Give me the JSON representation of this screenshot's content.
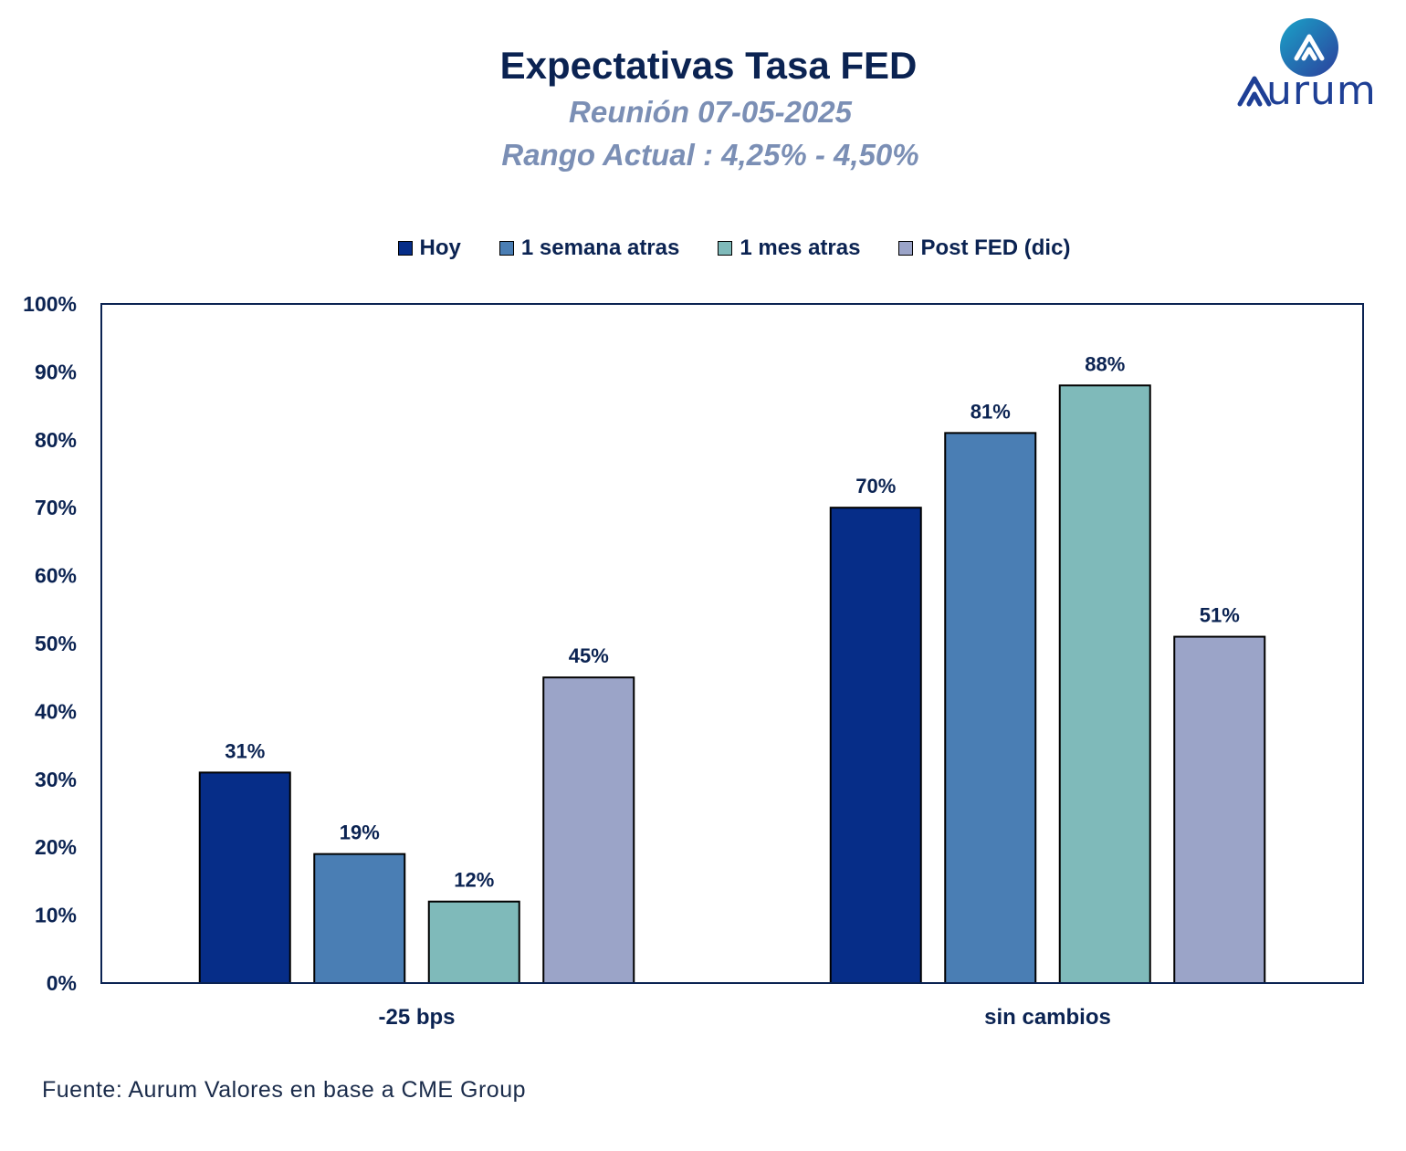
{
  "title": "Expectativas Tasa FED",
  "subtitle1": "Reunión 07-05-2025",
  "subtitle2": "Rango Actual : 4,25% - 4,50%",
  "source": "Fuente: Aurum Valores en base a CME Group",
  "logo": {
    "text": "urum",
    "icon": "aurum-logo-icon"
  },
  "colors": {
    "hoy": "#062d88",
    "semana": "#4a7eb4",
    "mes": "#7fbaba",
    "post": "#9ba4c8",
    "text": "#0b2352"
  },
  "chart_data": {
    "type": "bar",
    "title": "Expectativas Tasa FED",
    "categories": [
      "-25 bps",
      "sin cambios"
    ],
    "series": [
      {
        "name": "Hoy",
        "values": [
          31,
          70
        ],
        "labels": [
          "31%",
          "70%"
        ]
      },
      {
        "name": "1 semana atras",
        "values": [
          19,
          81
        ],
        "labels": [
          "19%",
          "81%"
        ]
      },
      {
        "name": "1 mes atras",
        "values": [
          12,
          88
        ],
        "labels": [
          "12%",
          "88%"
        ]
      },
      {
        "name": "Post FED (dic)",
        "values": [
          45,
          51
        ],
        "labels": [
          "45%",
          "51%"
        ]
      }
    ],
    "ylim": [
      0,
      100
    ],
    "yticks": [
      "0%",
      "10%",
      "20%",
      "30%",
      "40%",
      "50%",
      "60%",
      "70%",
      "80%",
      "90%",
      "100%"
    ],
    "xlabel": "",
    "ylabel": "",
    "grid": false,
    "legend": "top-center"
  }
}
